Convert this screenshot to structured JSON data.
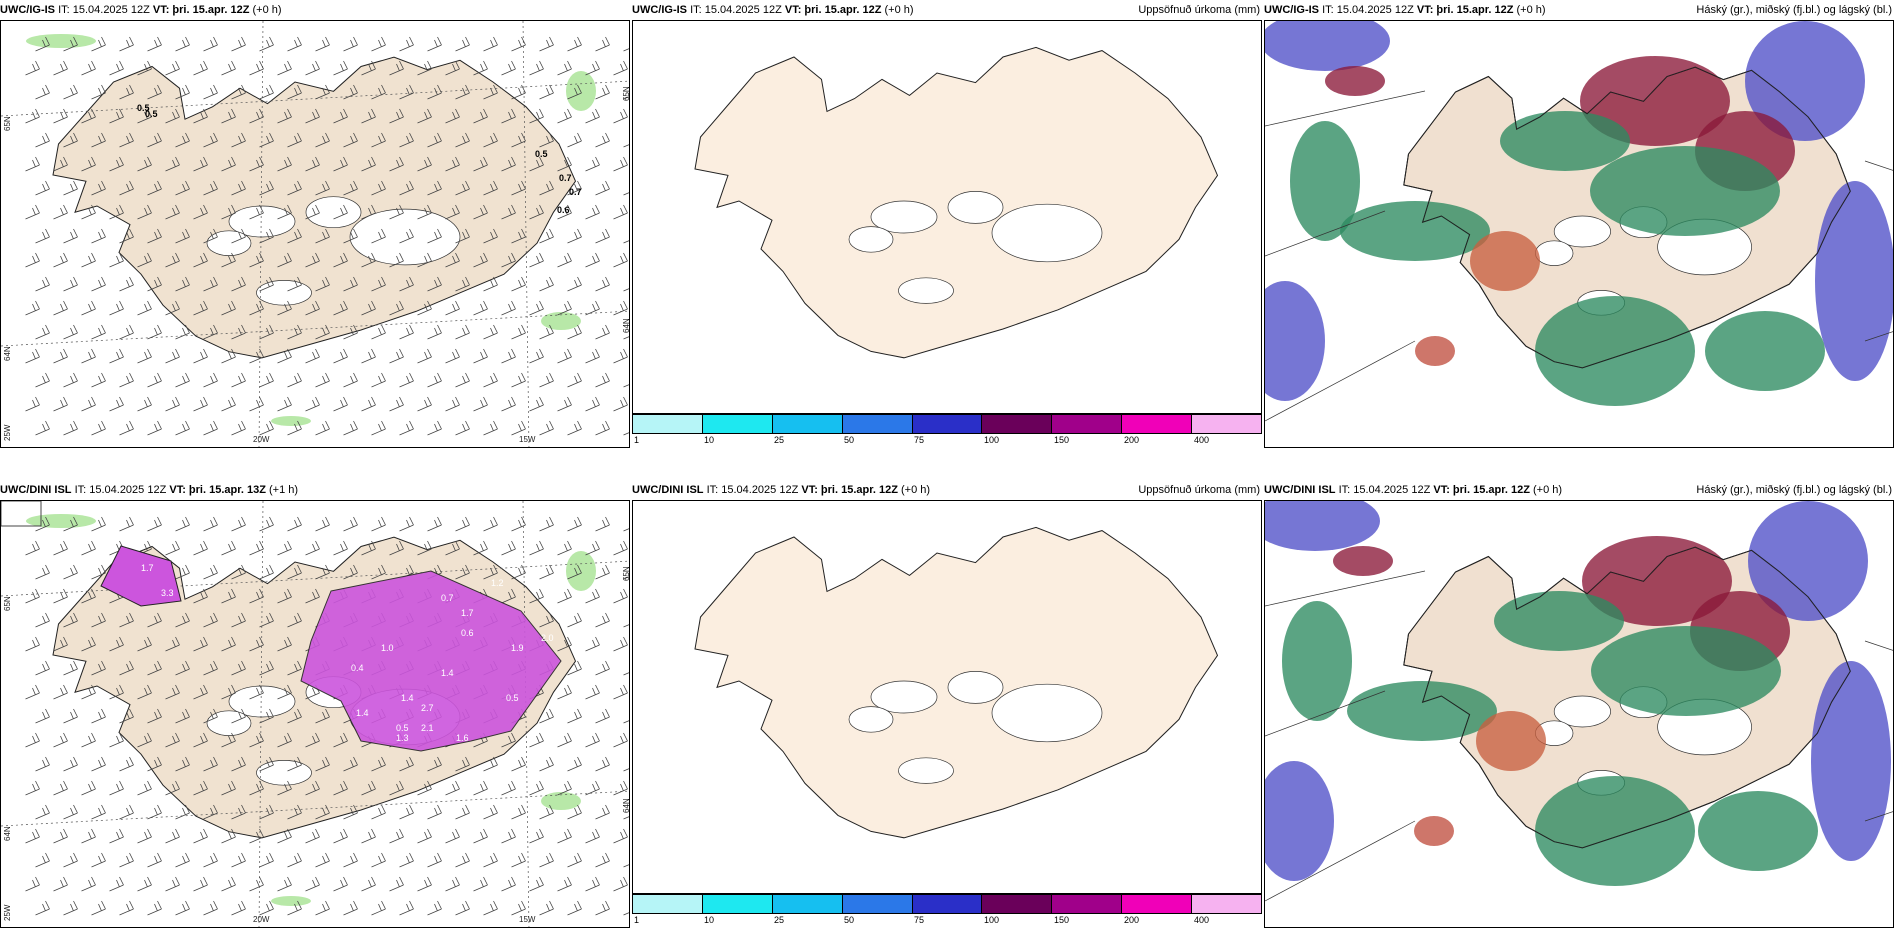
{
  "panels": [
    {
      "id": "p1",
      "model": "UWC/IG-IS",
      "it": "IT: 15.04.2025 12Z",
      "vt": "VT: þri. 15.apr. 12Z",
      "lead": "(+0 h)",
      "right": ""
    },
    {
      "id": "p2",
      "model": "UWC/IG-IS",
      "it": "IT: 15.04.2025 12Z",
      "vt": "VT: þri. 15.apr. 12Z",
      "lead": "(+0 h)",
      "right": "Uppsöfnuð úrkoma (mm)"
    },
    {
      "id": "p3",
      "model": "UWC/IG-IS",
      "it": "IT: 15.04.2025 12Z",
      "vt": "VT: þri. 15.apr. 12Z",
      "lead": "(+0 h)",
      "right": "Háský (gr.), miðský (fj.bl.) og lágský (bl.)"
    },
    {
      "id": "p4",
      "model": "UWC/DINI ISL",
      "it": "IT: 15.04.2025 12Z",
      "vt": "VT: þri. 15.apr. 13Z",
      "lead": "(+1 h)",
      "right": ""
    },
    {
      "id": "p5",
      "model": "UWC/DINI ISL",
      "it": "IT: 15.04.2025 12Z",
      "vt": "VT: þri. 15.apr. 12Z",
      "lead": "(+0 h)",
      "right": "Uppsöfnuð úrkoma (mm)"
    },
    {
      "id": "p6",
      "model": "UWC/DINI ISL",
      "it": "IT: 15.04.2025 12Z",
      "vt": "VT: þri. 15.apr. 12Z",
      "lead": "(+0 h)",
      "right": "Háský (gr.), miðský (fj.bl.) og lágský (bl.)"
    }
  ],
  "grid_labels": {
    "lat_left_top": "65N",
    "lat_left_mid": "64N",
    "lon_left_bot": "25W",
    "lon_20": "20W",
    "lon_15": "15W",
    "lat_right_top": "65N",
    "lat_right_mid": "64N"
  },
  "colorbar": {
    "colors": [
      "#b6f5f7",
      "#1ee8f0",
      "#16bff0",
      "#2b78e8",
      "#2a2fc8",
      "#6a005a",
      "#a0008a",
      "#f000b8",
      "#f6b2f0"
    ],
    "ticks": [
      "1",
      "10",
      "25",
      "50",
      "75",
      "100",
      "150",
      "200",
      "400"
    ]
  },
  "precip_labels_top": [
    "0.5",
    "0.5",
    "0.5",
    "0.7",
    "0.7",
    "0.6"
  ],
  "precip_labels_bottom": [
    "3.3",
    "1.7",
    "2.7",
    "1.2",
    "1.7",
    "1.4",
    "1.4",
    "1.9",
    "2.0",
    "1.0",
    "0.5",
    "1.4",
    "1.3",
    "2.1",
    "1.6",
    "0.7",
    "0.5",
    "0.6",
    "0.4"
  ],
  "colors": {
    "land": "#f0e2d0",
    "snow": "#f8ece0",
    "precip": "#cc55dd",
    "green": "#b8e8a8",
    "cloud_blue": "#5050c8",
    "cloud_red": "#8a1838",
    "cloud_green": "#2d8a60"
  }
}
